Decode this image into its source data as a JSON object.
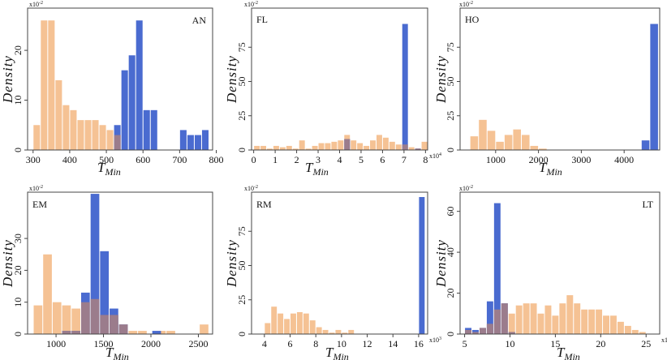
{
  "colors": {
    "series_a": "#f5c294",
    "series_b": "#4a6bd0",
    "overlap": "#9b7c8c"
  },
  "chart_data": [
    {
      "type": "bar",
      "panel": "AN",
      "xlabel": "T",
      "xlabel_sub": "Min",
      "ylabel": "Density",
      "y_multiplier": "x10",
      "y_multiplier_exp": "-2",
      "x_multiplier": "",
      "x_multiplier_exp": "",
      "xlim": [
        285,
        790
      ],
      "ylim": [
        0,
        27.5
      ],
      "xticks": [
        300,
        400,
        500,
        600,
        700,
        800
      ],
      "xtick_labels": [
        "300",
        "400",
        "500",
        "600",
        "700",
        "800"
      ],
      "yticks": [
        0,
        10,
        20
      ],
      "ytick_labels": [
        "0",
        "10",
        "20"
      ],
      "series": [
        {
          "bins": [
            [
              300,
              320,
              5
            ],
            [
              320,
              340,
              26
            ],
            [
              340,
              360,
              26
            ],
            [
              360,
              380,
              14
            ],
            [
              380,
              400,
              9
            ],
            [
              400,
              420,
              8
            ],
            [
              420,
              440,
              6
            ],
            [
              440,
              460,
              6
            ],
            [
              460,
              480,
              6
            ],
            [
              480,
              500,
              5
            ],
            [
              500,
              520,
              4
            ],
            [
              520,
              540,
              3
            ]
          ]
        },
        {
          "bins": [
            [
              520,
              540,
              5
            ],
            [
              540,
              560,
              16
            ],
            [
              560,
              580,
              19
            ],
            [
              580,
              600,
              26
            ],
            [
              600,
              620,
              8
            ],
            [
              620,
              640,
              8
            ],
            [
              700,
              720,
              4
            ],
            [
              720,
              740,
              3
            ],
            [
              740,
              760,
              3
            ],
            [
              760,
              780,
              4
            ]
          ]
        }
      ]
    },
    {
      "type": "bar",
      "panel": "FL",
      "xlabel": "T",
      "xlabel_sub": "Min",
      "ylabel": "Density",
      "y_multiplier": "x10",
      "y_multiplier_exp": "-2",
      "x_multiplier": "x10",
      "x_multiplier_exp": "4",
      "xlim": [
        -0.1,
        8.1
      ],
      "ylim": [
        0,
        100
      ],
      "xticks": [
        0,
        1,
        2,
        3,
        4,
        5,
        6,
        7,
        8
      ],
      "xtick_labels": [
        "0",
        "1",
        "2",
        "3",
        "4",
        "5",
        "6",
        "7",
        "8"
      ],
      "yticks": [
        0,
        25,
        50,
        75
      ],
      "ytick_labels": [
        "0",
        "25",
        "50",
        "75"
      ],
      "series": [
        {
          "bins": [
            [
              0,
              0.3,
              3
            ],
            [
              0.3,
              0.6,
              3
            ],
            [
              0.6,
              0.9,
              1
            ],
            [
              0.9,
              1.2,
              3
            ],
            [
              1.2,
              1.5,
              2
            ],
            [
              1.5,
              1.8,
              3
            ],
            [
              1.8,
              2.1,
              1
            ],
            [
              2.1,
              2.4,
              7
            ],
            [
              2.4,
              2.7,
              1
            ],
            [
              2.7,
              3.0,
              3
            ],
            [
              3.0,
              3.3,
              5
            ],
            [
              3.3,
              3.6,
              5
            ],
            [
              3.6,
              3.9,
              6
            ],
            [
              3.9,
              4.2,
              7
            ],
            [
              4.2,
              4.5,
              11
            ],
            [
              4.5,
              4.8,
              7
            ],
            [
              4.8,
              5.1,
              5
            ],
            [
              5.1,
              5.4,
              3
            ],
            [
              5.4,
              5.7,
              7
            ],
            [
              5.7,
              6.0,
              11
            ],
            [
              6.0,
              6.3,
              9
            ],
            [
              6.3,
              6.6,
              6
            ],
            [
              6.6,
              6.9,
              4
            ],
            [
              6.9,
              7.2,
              4
            ],
            [
              7.2,
              7.5,
              2
            ],
            [
              7.5,
              7.8,
              1
            ],
            [
              7.8,
              8.1,
              6
            ]
          ]
        },
        {
          "bins": [
            [
              4.2,
              4.5,
              8
            ],
            [
              6.9,
              7.2,
              92
            ],
            [
              7.5,
              7.8,
              1
            ]
          ]
        }
      ]
    },
    {
      "type": "bar",
      "panel": "HO",
      "xlabel": "T",
      "xlabel_sub": "Min",
      "ylabel": "Density",
      "y_multiplier": "x10",
      "y_multiplier_exp": "-2",
      "x_multiplier": "",
      "x_multiplier_exp": "",
      "xlim": [
        170,
        4830
      ],
      "ylim": [
        0,
        100
      ],
      "xticks": [
        1000,
        2000,
        3000,
        4000
      ],
      "xtick_labels": [
        "1000",
        "2000",
        "3000",
        "4000"
      ],
      "yticks": [
        0,
        25,
        50,
        75
      ],
      "ytick_labels": [
        "0",
        "25",
        "50",
        "75"
      ],
      "series": [
        {
          "bins": [
            [
              400,
              600,
              10
            ],
            [
              600,
              800,
              22
            ],
            [
              800,
              1000,
              14
            ],
            [
              1000,
              1200,
              6
            ],
            [
              1200,
              1400,
              11
            ],
            [
              1400,
              1600,
              15
            ],
            [
              1600,
              1800,
              11
            ],
            [
              1800,
              2000,
              3
            ],
            [
              2000,
              2200,
              1
            ]
          ]
        },
        {
          "bins": [
            [
              4400,
              4600,
              7
            ],
            [
              4600,
              4800,
              92
            ]
          ]
        }
      ]
    },
    {
      "type": "bar",
      "panel": "EM",
      "xlabel": "T",
      "xlabel_sub": "Min",
      "ylabel": "Density",
      "y_multiplier": "x10",
      "y_multiplier_exp": "-2",
      "x_multiplier": "",
      "x_multiplier_exp": "",
      "xlim": [
        700,
        2650
      ],
      "ylim": [
        0,
        43
      ],
      "xticks": [
        1000,
        1500,
        2000,
        2500
      ],
      "xtick_labels": [
        "1000",
        "1500",
        "2000",
        "2500"
      ],
      "yticks": [
        0,
        10,
        20,
        30
      ],
      "ytick_labels": [
        "0",
        "10",
        "20",
        "30"
      ],
      "series": [
        {
          "bins": [
            [
              760,
              860,
              9
            ],
            [
              860,
              960,
              25
            ],
            [
              960,
              1060,
              10
            ],
            [
              1060,
              1160,
              9
            ],
            [
              1160,
              1260,
              8
            ],
            [
              1260,
              1360,
              10
            ],
            [
              1360,
              1460,
              11
            ],
            [
              1460,
              1560,
              6
            ],
            [
              1560,
              1660,
              6
            ],
            [
              1660,
              1760,
              3
            ],
            [
              1760,
              1860,
              1
            ],
            [
              1860,
              1960,
              1
            ],
            [
              2060,
              2160,
              1
            ],
            [
              2160,
              2260,
              1
            ],
            [
              2510,
              2610,
              3
            ]
          ]
        },
        {
          "bins": [
            [
              1060,
              1160,
              1
            ],
            [
              1160,
              1260,
              1
            ],
            [
              1260,
              1360,
              13
            ],
            [
              1360,
              1460,
              44
            ],
            [
              1460,
              1560,
              26
            ],
            [
              1560,
              1660,
              8
            ],
            [
              1660,
              1760,
              3
            ],
            [
              2010,
              2110,
              1
            ]
          ]
        }
      ]
    },
    {
      "type": "bar",
      "panel": "RM",
      "xlabel": "T",
      "xlabel_sub": "Min",
      "ylabel": "Density",
      "y_multiplier": "x10",
      "y_multiplier_exp": "-2",
      "x_multiplier": "x10",
      "x_multiplier_exp": "3",
      "xlim": [
        3.0,
        16.7
      ],
      "ylim": [
        0,
        100
      ],
      "xticks": [
        4,
        6,
        8,
        10,
        12,
        14,
        16
      ],
      "xtick_labels": [
        "4",
        "6",
        "8",
        "10",
        "12",
        "14",
        "16"
      ],
      "yticks": [
        0,
        25,
        50,
        75
      ],
      "ytick_labels": [
        "0",
        "25",
        "50",
        "75"
      ],
      "series": [
        {
          "bins": [
            [
              4.0,
              4.5,
              8
            ],
            [
              4.5,
              5.0,
              20
            ],
            [
              5.0,
              5.5,
              15
            ],
            [
              5.5,
              6.0,
              11
            ],
            [
              6.0,
              6.5,
              15
            ],
            [
              6.5,
              7.0,
              16
            ],
            [
              7.0,
              7.5,
              15
            ],
            [
              7.5,
              8.0,
              10
            ],
            [
              8.0,
              8.5,
              5
            ],
            [
              8.5,
              9.0,
              3
            ],
            [
              9.0,
              9.5,
              1
            ],
            [
              9.5,
              10.0,
              3
            ],
            [
              10.0,
              10.5,
              1
            ],
            [
              10.5,
              11.0,
              3
            ]
          ]
        },
        {
          "bins": [
            [
              16.0,
              16.5,
              100
            ]
          ]
        }
      ]
    },
    {
      "type": "bar",
      "panel": "LT",
      "xlabel": "T",
      "xlabel_sub": "Min",
      "ylabel": "Density",
      "y_multiplier": "x10",
      "y_multiplier_exp": "-2",
      "x_multiplier": "x10",
      "x_multiplier_exp": "3",
      "xlim": [
        4.5,
        26.5
      ],
      "ylim": [
        0,
        67
      ],
      "xticks": [
        5,
        10,
        15,
        20,
        25
      ],
      "xtick_labels": [
        "5",
        "10",
        "15",
        "20",
        "25"
      ],
      "yticks": [
        0,
        20,
        40,
        60
      ],
      "ytick_labels": [
        "0",
        "20",
        "40",
        "60"
      ],
      "series": [
        {
          "bins": [
            [
              5.0,
              5.8,
              2
            ],
            [
              5.8,
              6.6,
              1
            ],
            [
              6.6,
              7.4,
              3
            ],
            [
              7.4,
              8.2,
              5
            ],
            [
              8.2,
              9.0,
              12
            ],
            [
              9.0,
              9.8,
              15
            ],
            [
              9.8,
              10.6,
              10
            ],
            [
              10.6,
              11.4,
              14
            ],
            [
              11.4,
              12.2,
              15
            ],
            [
              12.2,
              13.0,
              15
            ],
            [
              13.0,
              13.8,
              10
            ],
            [
              13.8,
              14.6,
              14
            ],
            [
              14.6,
              15.4,
              9
            ],
            [
              15.4,
              16.2,
              15
            ],
            [
              16.2,
              17.0,
              19
            ],
            [
              17.0,
              17.8,
              15
            ],
            [
              17.8,
              18.6,
              12
            ],
            [
              18.6,
              19.4,
              12
            ],
            [
              19.4,
              20.2,
              12
            ],
            [
              20.2,
              21.0,
              9
            ],
            [
              21.0,
              21.8,
              9
            ],
            [
              21.8,
              22.6,
              6
            ],
            [
              22.6,
              23.4,
              4
            ],
            [
              23.4,
              24.2,
              2
            ],
            [
              24.2,
              25.0,
              1
            ]
          ]
        },
        {
          "bins": [
            [
              5.0,
              5.8,
              3
            ],
            [
              5.8,
              6.6,
              2
            ],
            [
              6.6,
              7.4,
              3
            ],
            [
              7.4,
              8.2,
              16
            ],
            [
              8.2,
              9.0,
              64
            ],
            [
              9.0,
              9.8,
              15
            ],
            [
              9.8,
              10.6,
              1
            ]
          ]
        }
      ]
    }
  ]
}
